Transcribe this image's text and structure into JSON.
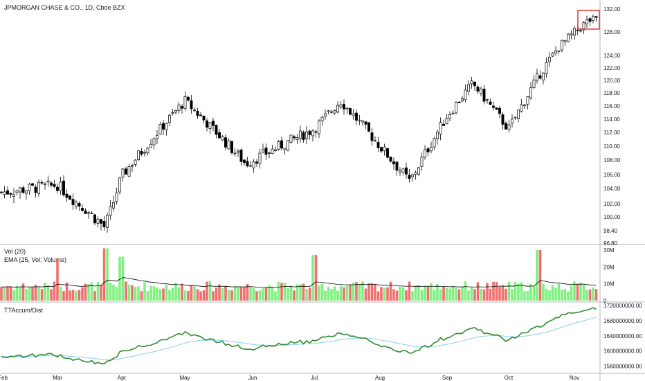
{
  "chart_data": [
    {
      "type": "candlestick",
      "title": "JPMORGAN CHASE & CO., 1D, Cboe BZX",
      "x_labels": [
        "Feb",
        "Mar",
        "Apr",
        "May",
        "Jun",
        "Jul",
        "Aug",
        "Sep",
        "Oct",
        "Nov"
      ],
      "y_ticks": [
        96.8,
        98.4,
        100.0,
        102.0,
        104.0,
        106.0,
        108.0,
        110.0,
        112.0,
        114.0,
        116.0,
        118.0,
        120.0,
        122.0,
        124.0,
        128.0,
        132.0
      ],
      "y_tick_labels": [
        "96.80",
        "98.40",
        "100.00",
        "102.00",
        "104.00",
        "106.00",
        "108.00",
        "110.00",
        "112.00",
        "114.00",
        "116.00",
        "118.00",
        "120.00",
        "122.00",
        "124.00",
        "128.00",
        "132.00"
      ],
      "ylim": [
        96.8,
        132
      ],
      "colors": {
        "up": "#ffffff",
        "down": "#000000",
        "wick": "#000000",
        "highlight_box": "#e53935"
      },
      "series": [
        {
          "name": "price",
          "key_points": [
            {
              "x": "Feb",
              "close": 103.5
            },
            {
              "x": "Mar",
              "close": 104.5
            },
            {
              "x": "late Mar",
              "close": 98.7
            },
            {
              "x": "Apr",
              "close": 105.8
            },
            {
              "x": "May",
              "close": 116.8
            },
            {
              "x": "Jun",
              "close": 107.5
            },
            {
              "x": "Jul",
              "close": 112.5
            },
            {
              "x": "mid Jul",
              "close": 116.8
            },
            {
              "x": "Aug",
              "close": 110.0
            },
            {
              "x": "mid Aug",
              "close": 105.0
            },
            {
              "x": "Sep",
              "close": 114.5
            },
            {
              "x": "mid Sep",
              "close": 119.5
            },
            {
              "x": "Oct",
              "close": 112.5
            },
            {
              "x": "mid Oct",
              "close": 121.0
            },
            {
              "x": "late Oct",
              "close": 125.5
            },
            {
              "x": "Nov",
              "close": 130.0
            }
          ]
        }
      ],
      "annotation": "highlight box around latest candles near 130"
    },
    {
      "type": "bar",
      "pane_title": "Vol (20)",
      "overlay_title": "EMA (25, Vol: Volume)",
      "y_tick_labels": [
        "30M",
        "20M",
        "10M",
        "0"
      ],
      "y_ticks": [
        30,
        20,
        10,
        0
      ],
      "ylim": [
        0,
        32
      ],
      "unit": "M",
      "colors": {
        "up": "#80f080",
        "down": "#f07070",
        "ema": "#000000"
      },
      "typical_volume": 10,
      "peaks": [
        {
          "x": "late Mar",
          "value": 31
        },
        {
          "x": "Mar",
          "value": 25
        },
        {
          "x": "Apr",
          "value": 26
        },
        {
          "x": "Jul",
          "value": 27
        },
        {
          "x": "mid Oct",
          "value": 30
        }
      ]
    },
    {
      "type": "line",
      "pane_title": "TTAccum/Dist",
      "y_tick_labels": [
        "1720000000.00",
        "1680000000.00",
        "1640000000.00",
        "1600000000.00",
        "1560000000.00"
      ],
      "y_ticks": [
        1720000000,
        1680000000,
        1640000000,
        1600000000,
        1560000000
      ],
      "ylim": [
        1550000000,
        1722000000
      ],
      "colors": {
        "main": "#2e8b2e",
        "signal": "#87ceeb"
      }
    }
  ]
}
